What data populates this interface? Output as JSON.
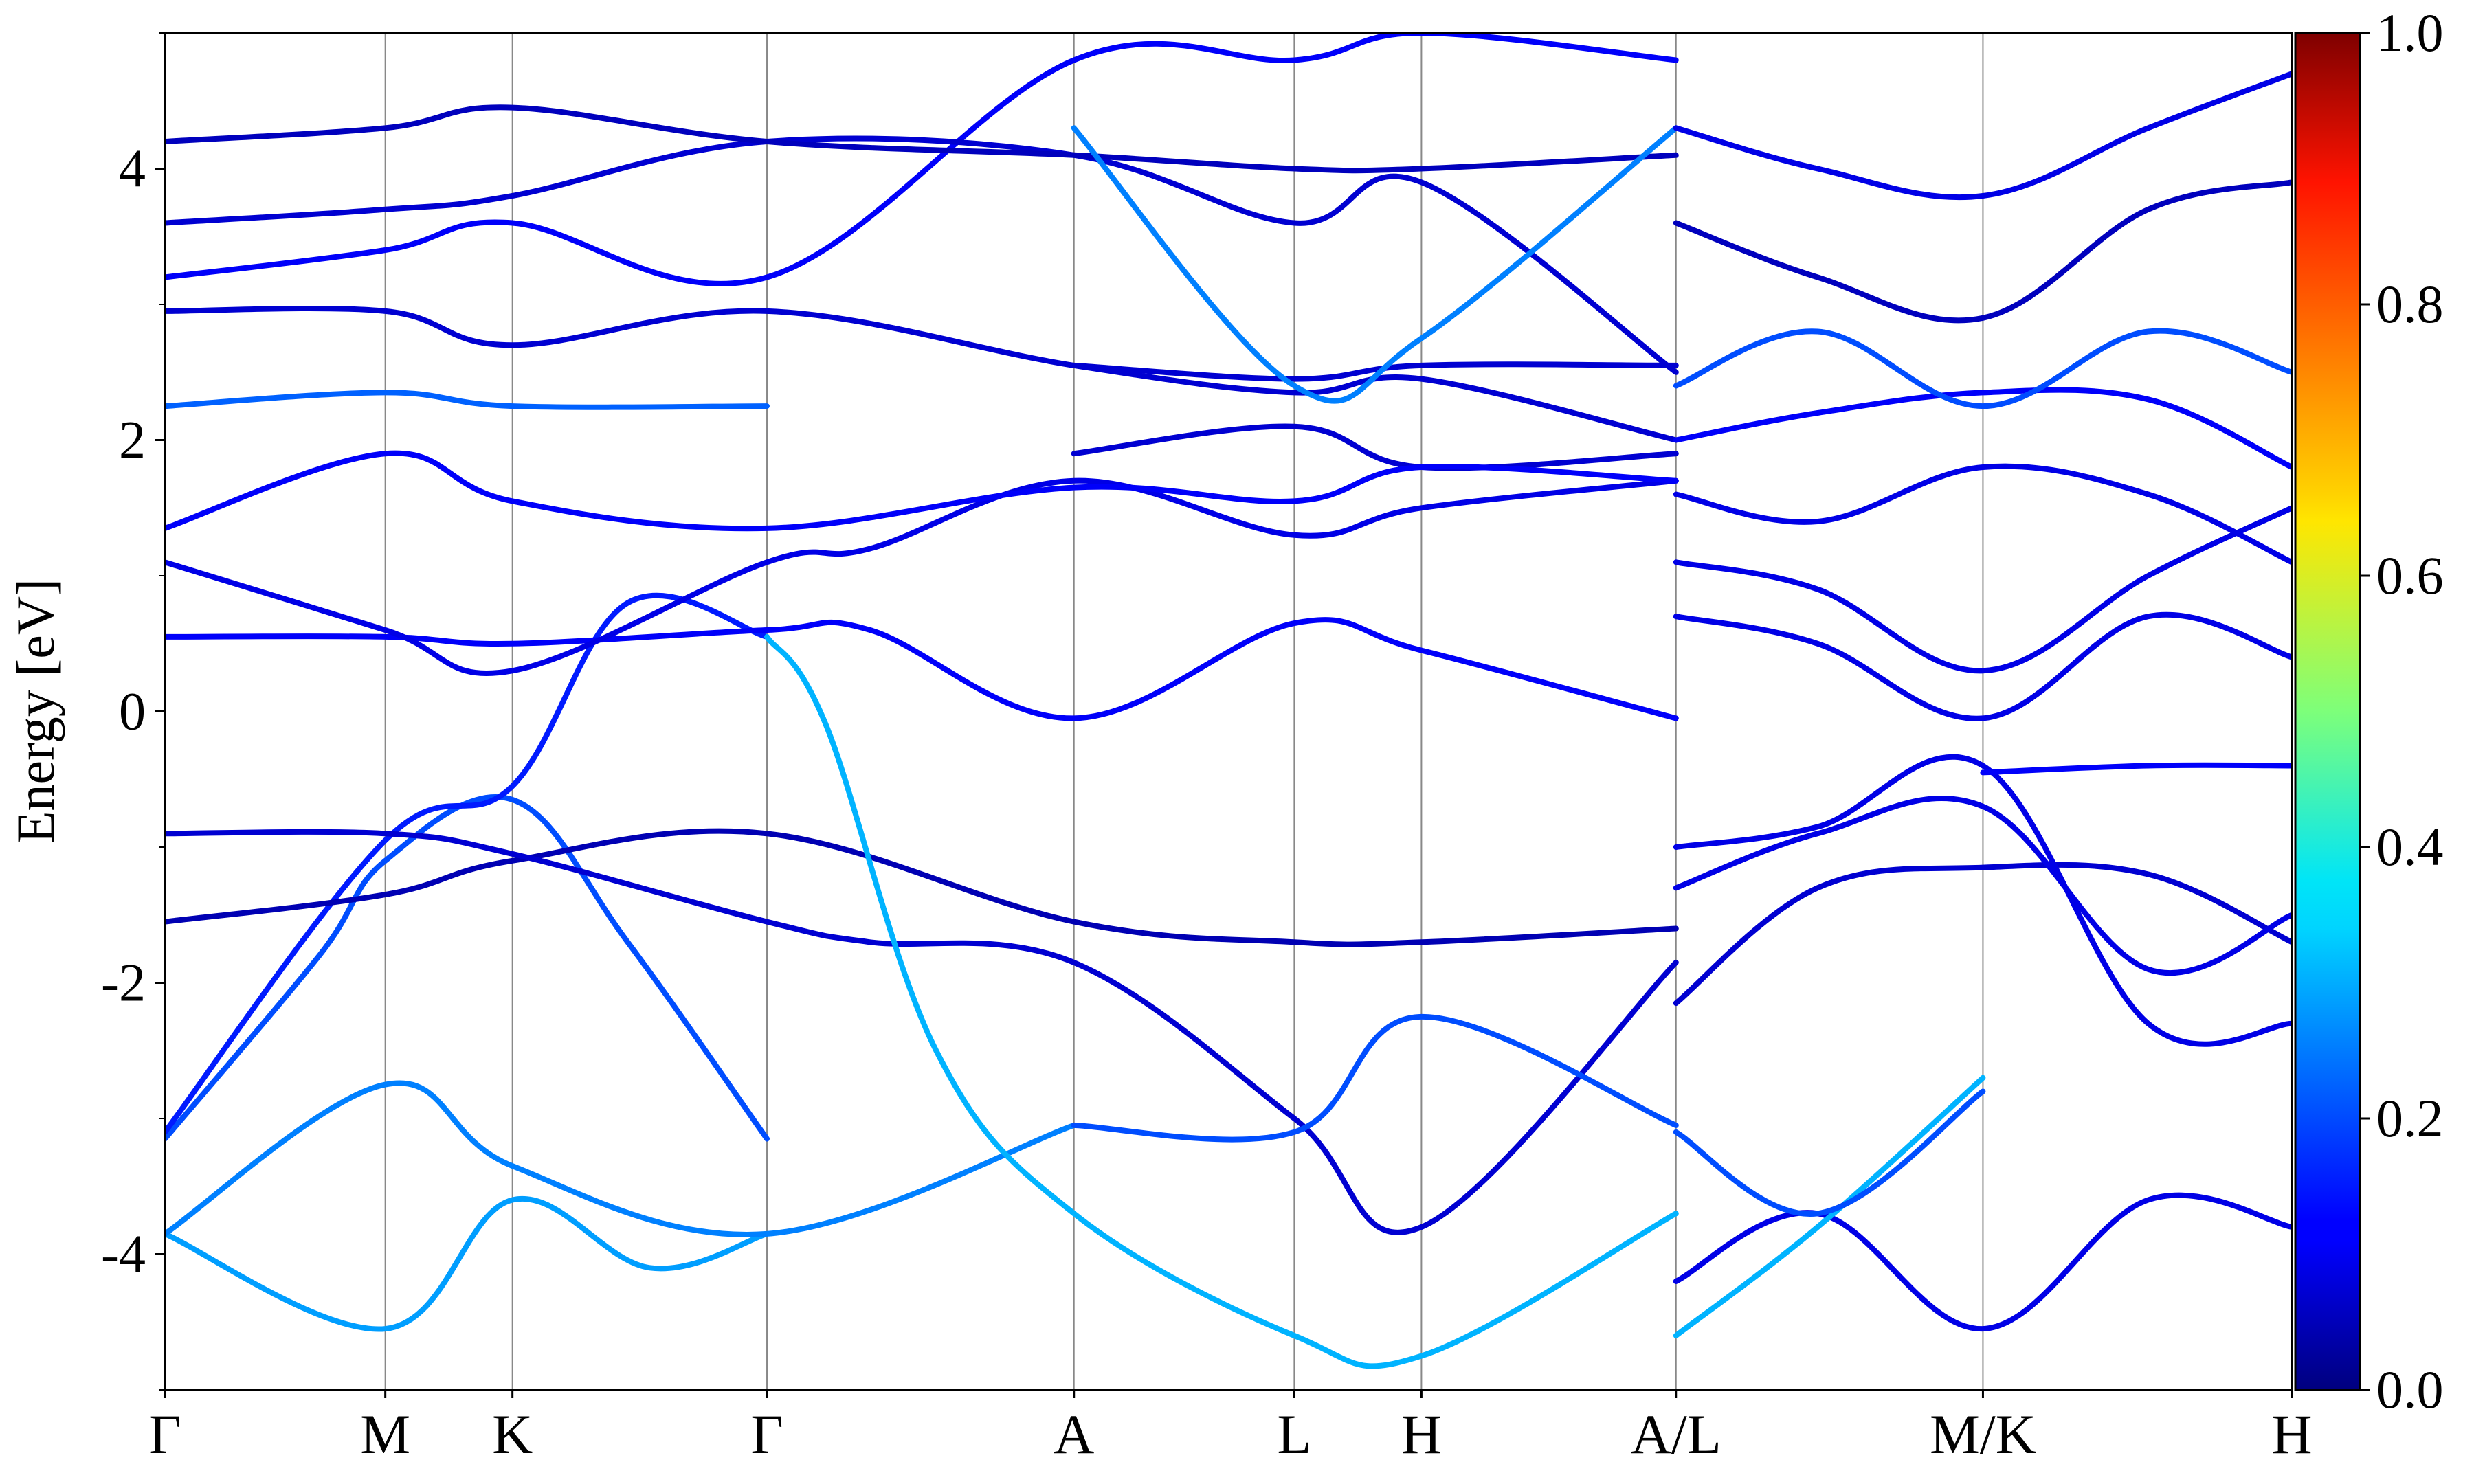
{
  "chart_data": {
    "type": "line",
    "title": "",
    "ylabel": "Energy [eV]",
    "xlabel": "",
    "ylim": [
      -5,
      5
    ],
    "yticks": [
      -4,
      -2,
      0,
      2,
      4
    ],
    "ytick_labels": [
      "-4",
      "-2",
      "0",
      "2",
      "4"
    ],
    "grid": "vertical lines at high-symmetry points",
    "kpath": {
      "labels": [
        "Γ",
        "M",
        "K",
        "Γ",
        "A",
        "L",
        "H",
        "A/L",
        "M/K",
        "H"
      ],
      "positions": [
        0,
        1,
        1.577,
        2.732,
        4.125,
        5.125,
        5.702,
        6.857,
        8.25,
        9.652
      ]
    },
    "colorbar": {
      "colormap": "jet",
      "range": [
        0.0,
        1.0
      ],
      "ticks": [
        "0.0",
        "0.2",
        "0.4",
        "0.6",
        "0.8",
        "1.0"
      ]
    },
    "series": [
      {
        "w": 0.28,
        "x": [
          0,
          1,
          1.577,
          2.2,
          2.732
        ],
        "y": [
          -3.85,
          -4.55,
          -3.6,
          -4.1,
          -3.85
        ]
      },
      {
        "w": 0.25,
        "x": [
          0,
          1,
          1.577,
          2.732,
          4.125
        ],
        "y": [
          -3.85,
          -2.75,
          -3.35,
          -3.85,
          -3.05
        ]
      },
      {
        "w": 0.2,
        "x": [
          0,
          0.7,
          1,
          1.577,
          2.1,
          2.732
        ],
        "y": [
          -3.15,
          -1.8,
          -1.1,
          -0.65,
          -1.7,
          -3.15
        ]
      },
      {
        "w": 0.15,
        "x": [
          0,
          1,
          1.577,
          2.1,
          2.732
        ],
        "y": [
          -3.1,
          -0.95,
          -0.55,
          0.8,
          0.55
        ]
      },
      {
        "w": 0.05,
        "x": [
          0,
          1,
          1.577,
          2.732,
          4.125,
          5.125,
          5.702,
          6.857
        ],
        "y": [
          -1.55,
          -1.35,
          -1.1,
          -0.9,
          -1.55,
          -1.7,
          -1.7,
          -1.6
        ]
      },
      {
        "w": 0.08,
        "x": [
          0,
          1,
          1.577,
          2.732,
          3.2,
          4.125,
          5.125,
          5.702,
          6.857
        ],
        "y": [
          -0.9,
          -0.9,
          -1.05,
          -1.55,
          -1.7,
          -1.85,
          -3.0,
          -3.8,
          -1.85
        ]
      },
      {
        "w": 0.3,
        "x": [
          2.732,
          3.0,
          3.5,
          4.125,
          5.125,
          5.702,
          6.857
        ],
        "y": [
          0.55,
          -0.1,
          -2.5,
          -3.7,
          -4.6,
          -4.75,
          -3.7
        ]
      },
      {
        "w": 0.2,
        "x": [
          4.125,
          5.125,
          5.702,
          6.857
        ],
        "y": [
          -3.05,
          -3.1,
          -2.25,
          -3.05
        ]
      },
      {
        "w": 0.12,
        "x": [
          0,
          1,
          1.577,
          2.732,
          3.2,
          4.125,
          5.125,
          5.702,
          6.857
        ],
        "y": [
          0.55,
          0.55,
          0.5,
          0.6,
          0.6,
          -0.05,
          0.65,
          0.45,
          -0.05
        ]
      },
      {
        "w": 0.1,
        "x": [
          0,
          1,
          1.577,
          2.732,
          3.2,
          4.125,
          5.125,
          5.702,
          6.857
        ],
        "y": [
          1.1,
          0.6,
          0.3,
          1.1,
          1.2,
          1.7,
          1.3,
          1.5,
          1.7
        ]
      },
      {
        "w": 0.08,
        "x": [
          4.125,
          5.125,
          5.702,
          6.857
        ],
        "y": [
          1.9,
          2.1,
          1.8,
          1.9
        ]
      },
      {
        "w": 0.08,
        "x": [
          4.125,
          5.125,
          5.702,
          6.857
        ],
        "y": [
          2.55,
          2.45,
          2.55,
          2.55
        ]
      },
      {
        "w": 0.12,
        "x": [
          0,
          1,
          1.577,
          2.732,
          4.125,
          5.125,
          5.702,
          6.857
        ],
        "y": [
          1.35,
          1.9,
          1.55,
          1.35,
          1.65,
          1.55,
          1.8,
          1.7
        ]
      },
      {
        "w": 0.22,
        "x": [
          0,
          1,
          1.577,
          2.732
        ],
        "y": [
          2.25,
          2.35,
          2.25,
          2.25
        ]
      },
      {
        "w": 0.08,
        "x": [
          0,
          1,
          1.577,
          2.732,
          4.125,
          5.125,
          5.702,
          6.857
        ],
        "y": [
          2.95,
          2.95,
          2.7,
          2.95,
          2.55,
          2.35,
          2.45,
          2.0
        ]
      },
      {
        "w": 0.12,
        "x": [
          0,
          1,
          1.577,
          2.732,
          4.125,
          5.125,
          5.702,
          6.857
        ],
        "y": [
          3.2,
          3.4,
          3.6,
          3.2,
          4.8,
          4.8,
          5.0,
          4.8
        ]
      },
      {
        "w": 0.08,
        "x": [
          0,
          1,
          1.577,
          2.732,
          4.125,
          5.125,
          5.702,
          6.857
        ],
        "y": [
          3.6,
          3.7,
          3.8,
          4.2,
          4.1,
          3.6,
          3.9,
          2.5
        ]
      },
      {
        "w": 0.06,
        "x": [
          0,
          1,
          1.577,
          2.732,
          4.125,
          5.125,
          5.702,
          6.857
        ],
        "y": [
          4.2,
          4.3,
          4.45,
          4.2,
          4.1,
          4.0,
          4.0,
          4.1
        ]
      },
      {
        "w": 0.25,
        "x": [
          4.125,
          5.125,
          5.702,
          6.857
        ],
        "y": [
          4.3,
          2.4,
          2.75,
          4.3
        ]
      },
      {
        "w": 0.1,
        "x": [
          6.857,
          7.5,
          8.25,
          9.0,
          9.652
        ],
        "y": [
          -4.2,
          -3.7,
          -4.55,
          -3.6,
          -3.8
        ]
      },
      {
        "w": 0.3,
        "x": [
          6.857,
          7.5,
          8.25
        ],
        "y": [
          -4.6,
          -3.8,
          -2.7
        ]
      },
      {
        "w": 0.2,
        "x": [
          6.857,
          7.5,
          8.25
        ],
        "y": [
          -3.1,
          -3.7,
          -2.8
        ]
      },
      {
        "w": 0.08,
        "x": [
          6.857,
          7.5,
          8.25,
          9.0,
          9.652
        ],
        "y": [
          -2.15,
          -1.3,
          -1.15,
          -1.2,
          -1.7
        ]
      },
      {
        "w": 0.1,
        "x": [
          6.857,
          7.5,
          8.25,
          9.0,
          9.652
        ],
        "y": [
          -1.3,
          -0.9,
          -0.7,
          -1.9,
          -1.5
        ]
      },
      {
        "w": 0.1,
        "x": [
          6.857,
          7.5,
          8.25,
          9.0,
          9.652
        ],
        "y": [
          -1.0,
          -0.85,
          -0.4,
          -2.3,
          -2.3
        ]
      },
      {
        "w": 0.12,
        "x": [
          8.25,
          9.0,
          9.652
        ],
        "y": [
          -0.45,
          -0.4,
          -0.4
        ]
      },
      {
        "w": 0.1,
        "x": [
          6.857,
          7.5,
          8.25,
          9.0,
          9.652
        ],
        "y": [
          0.7,
          0.5,
          -0.05,
          0.7,
          0.4
        ]
      },
      {
        "w": 0.1,
        "x": [
          6.857,
          7.5,
          8.25,
          9.0,
          9.652
        ],
        "y": [
          1.1,
          0.9,
          0.3,
          1.0,
          1.5
        ]
      },
      {
        "w": 0.1,
        "x": [
          6.857,
          7.5,
          8.25,
          9.0,
          9.652
        ],
        "y": [
          1.6,
          1.4,
          1.8,
          1.6,
          1.1
        ]
      },
      {
        "w": 0.12,
        "x": [
          6.857,
          7.5,
          8.25,
          9.0,
          9.652
        ],
        "y": [
          2.0,
          2.2,
          2.35,
          2.3,
          1.8
        ]
      },
      {
        "w": 0.2,
        "x": [
          6.857,
          7.5,
          8.25,
          9.0,
          9.652
        ],
        "y": [
          2.4,
          2.8,
          2.25,
          2.8,
          2.5
        ]
      },
      {
        "w": 0.06,
        "x": [
          6.857,
          7.5,
          8.25,
          9.0,
          9.652
        ],
        "y": [
          3.6,
          3.2,
          2.9,
          3.7,
          3.9
        ]
      },
      {
        "w": 0.1,
        "x": [
          6.857,
          7.5,
          8.25,
          9.0,
          9.652
        ],
        "y": [
          4.3,
          4.0,
          3.8,
          4.3,
          4.7
        ]
      }
    ]
  }
}
